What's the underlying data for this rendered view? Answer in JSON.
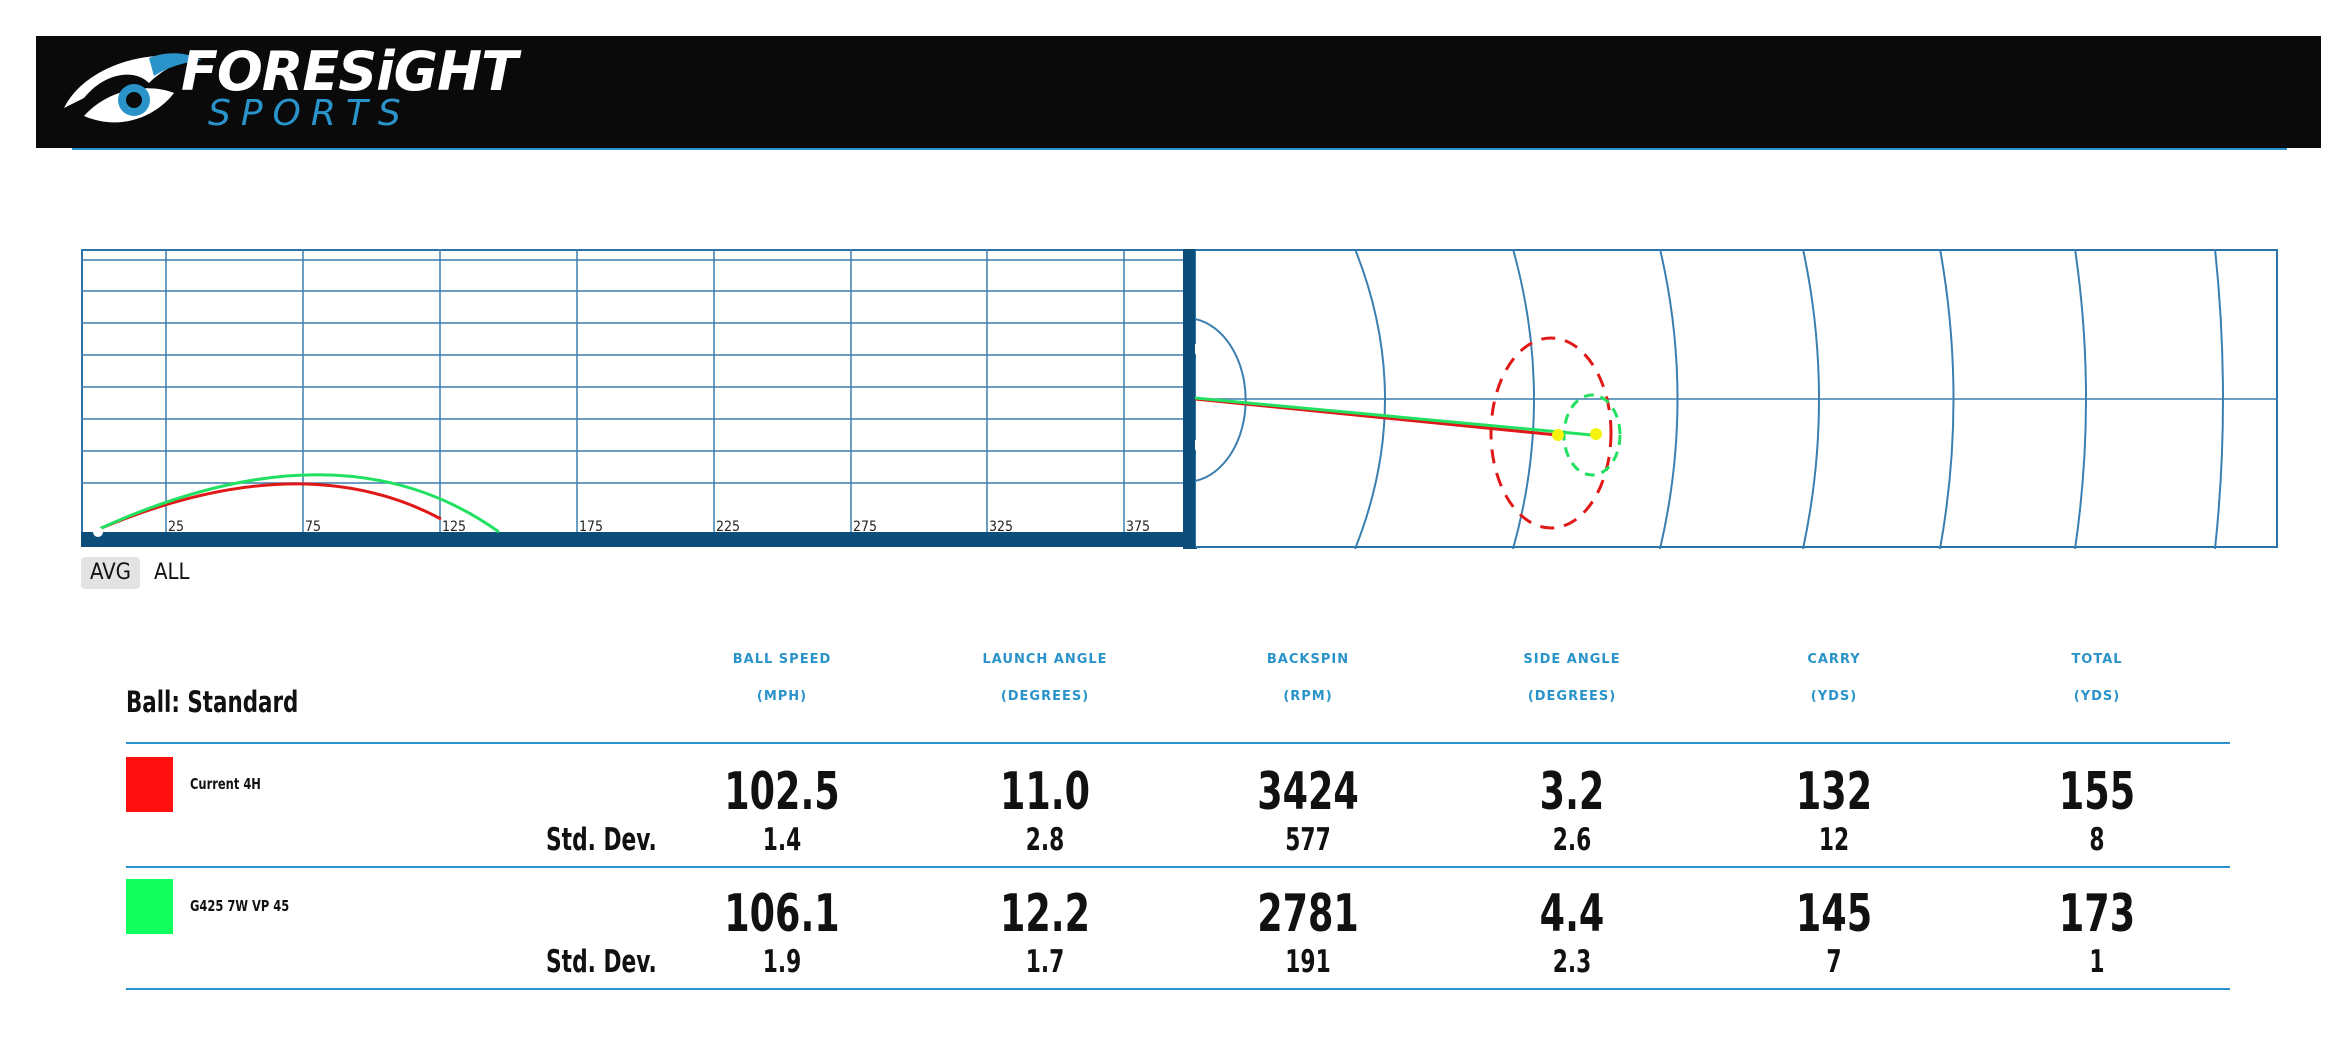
{
  "brand": {
    "name_line1": "FORESiGHT",
    "name_line2": "SPORTS",
    "accent_color": "#2a93c9",
    "header_bg": "#0a0a0a"
  },
  "side_view": {
    "distance_ticks": [
      "25",
      "75",
      "125",
      "175",
      "225",
      "275",
      "325",
      "375"
    ]
  },
  "view_toggle": {
    "options": [
      "AVG",
      "ALL"
    ],
    "selected": "AVG"
  },
  "stats": {
    "ball_label": "Ball: Standard",
    "std_dev_label": "Std. Dev.",
    "columns": [
      {
        "name": "BALL SPEED",
        "unit": "(MPH)"
      },
      {
        "name": "LAUNCH ANGLE",
        "unit": "(DEGREES)"
      },
      {
        "name": "BACKSPIN",
        "unit": "(RPM)"
      },
      {
        "name": "SIDE ANGLE",
        "unit": "(DEGREES)"
      },
      {
        "name": "CARRY",
        "unit": "(YDS)"
      },
      {
        "name": "TOTAL",
        "unit": "(YDS)"
      }
    ],
    "rows": [
      {
        "club": "Current 4H",
        "color": "#ff1010",
        "values": [
          "102.5",
          "11.0",
          "3424",
          "3.2",
          "132",
          "155"
        ],
        "std_dev": [
          "1.4",
          "2.8",
          "577",
          "2.6",
          "12",
          "8"
        ]
      },
      {
        "club": "G425 7W VP 45",
        "color": "#10ff5c",
        "values": [
          "106.1",
          "12.2",
          "2781",
          "4.4",
          "145",
          "173"
        ],
        "std_dev": [
          "1.9",
          "1.7",
          "191",
          "2.3",
          "7",
          "1"
        ]
      }
    ]
  }
}
